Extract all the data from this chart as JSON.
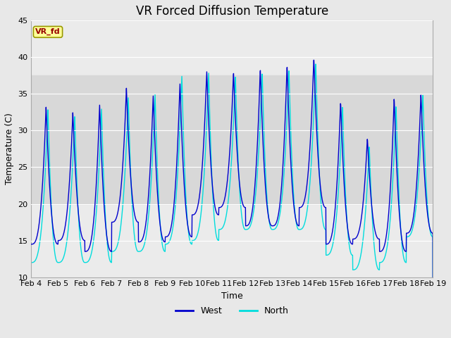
{
  "title": "VR Forced Diffusion Temperature",
  "xlabel": "Time",
  "ylabel": "Temperature (C)",
  "ylim": [
    10,
    45
  ],
  "ytick_values": [
    10,
    15,
    20,
    25,
    30,
    35,
    40,
    45
  ],
  "xtick_labels": [
    "Feb 4",
    "Feb 5",
    "Feb 6",
    "Feb 7",
    "Feb 8",
    "Feb 9",
    "Feb 10",
    "Feb 11",
    "Feb 12",
    "Feb 13",
    "Feb 14",
    "Feb 15",
    "Feb 16",
    "Feb 17",
    "Feb 18",
    "Feb 19"
  ],
  "color_west": "#0000CD",
  "color_north": "#00DDDD",
  "fig_bg": "#E8E8E8",
  "plot_bg": "#EBEBEB",
  "band_low": 20,
  "band_high": 37.5,
  "band_color": "#D8D8D8",
  "grid_color": "#FFFFFF",
  "annotation_text": "VR_fd",
  "annotation_bg": "#FFFF99",
  "annotation_border": "#999900",
  "annotation_text_color": "#990000",
  "title_fontsize": 12,
  "label_fontsize": 9,
  "tick_fontsize": 8,
  "west_peaks": [
    33.3,
    32.5,
    33.5,
    35.8,
    34.8,
    36.5,
    38.2,
    38.0,
    38.5,
    39.0,
    40.0,
    34.0,
    29.0,
    34.5,
    35.0
  ],
  "west_mins": [
    14.5,
    15.0,
    13.5,
    17.5,
    14.8,
    15.5,
    18.5,
    19.5,
    17.0,
    17.0,
    19.5,
    14.5,
    15.2,
    13.5,
    16.0
  ],
  "north_peaks": [
    33.0,
    32.0,
    33.0,
    34.5,
    35.0,
    37.5,
    38.0,
    37.5,
    38.0,
    38.5,
    39.5,
    33.5,
    28.0,
    33.5,
    35.0
  ],
  "north_mins": [
    12.0,
    12.0,
    12.0,
    13.5,
    13.5,
    14.5,
    15.0,
    16.5,
    16.5,
    16.5,
    16.5,
    13.0,
    11.0,
    12.0,
    15.5
  ],
  "west_peak_pos": [
    0.55,
    0.55,
    0.55,
    0.55,
    0.55,
    0.55,
    0.55,
    0.55,
    0.55,
    0.55,
    0.55,
    0.55,
    0.55,
    0.55,
    0.55
  ],
  "north_peak_pos": [
    0.62,
    0.62,
    0.62,
    0.62,
    0.62,
    0.62,
    0.62,
    0.62,
    0.62,
    0.62,
    0.62,
    0.62,
    0.62,
    0.62,
    0.62
  ]
}
